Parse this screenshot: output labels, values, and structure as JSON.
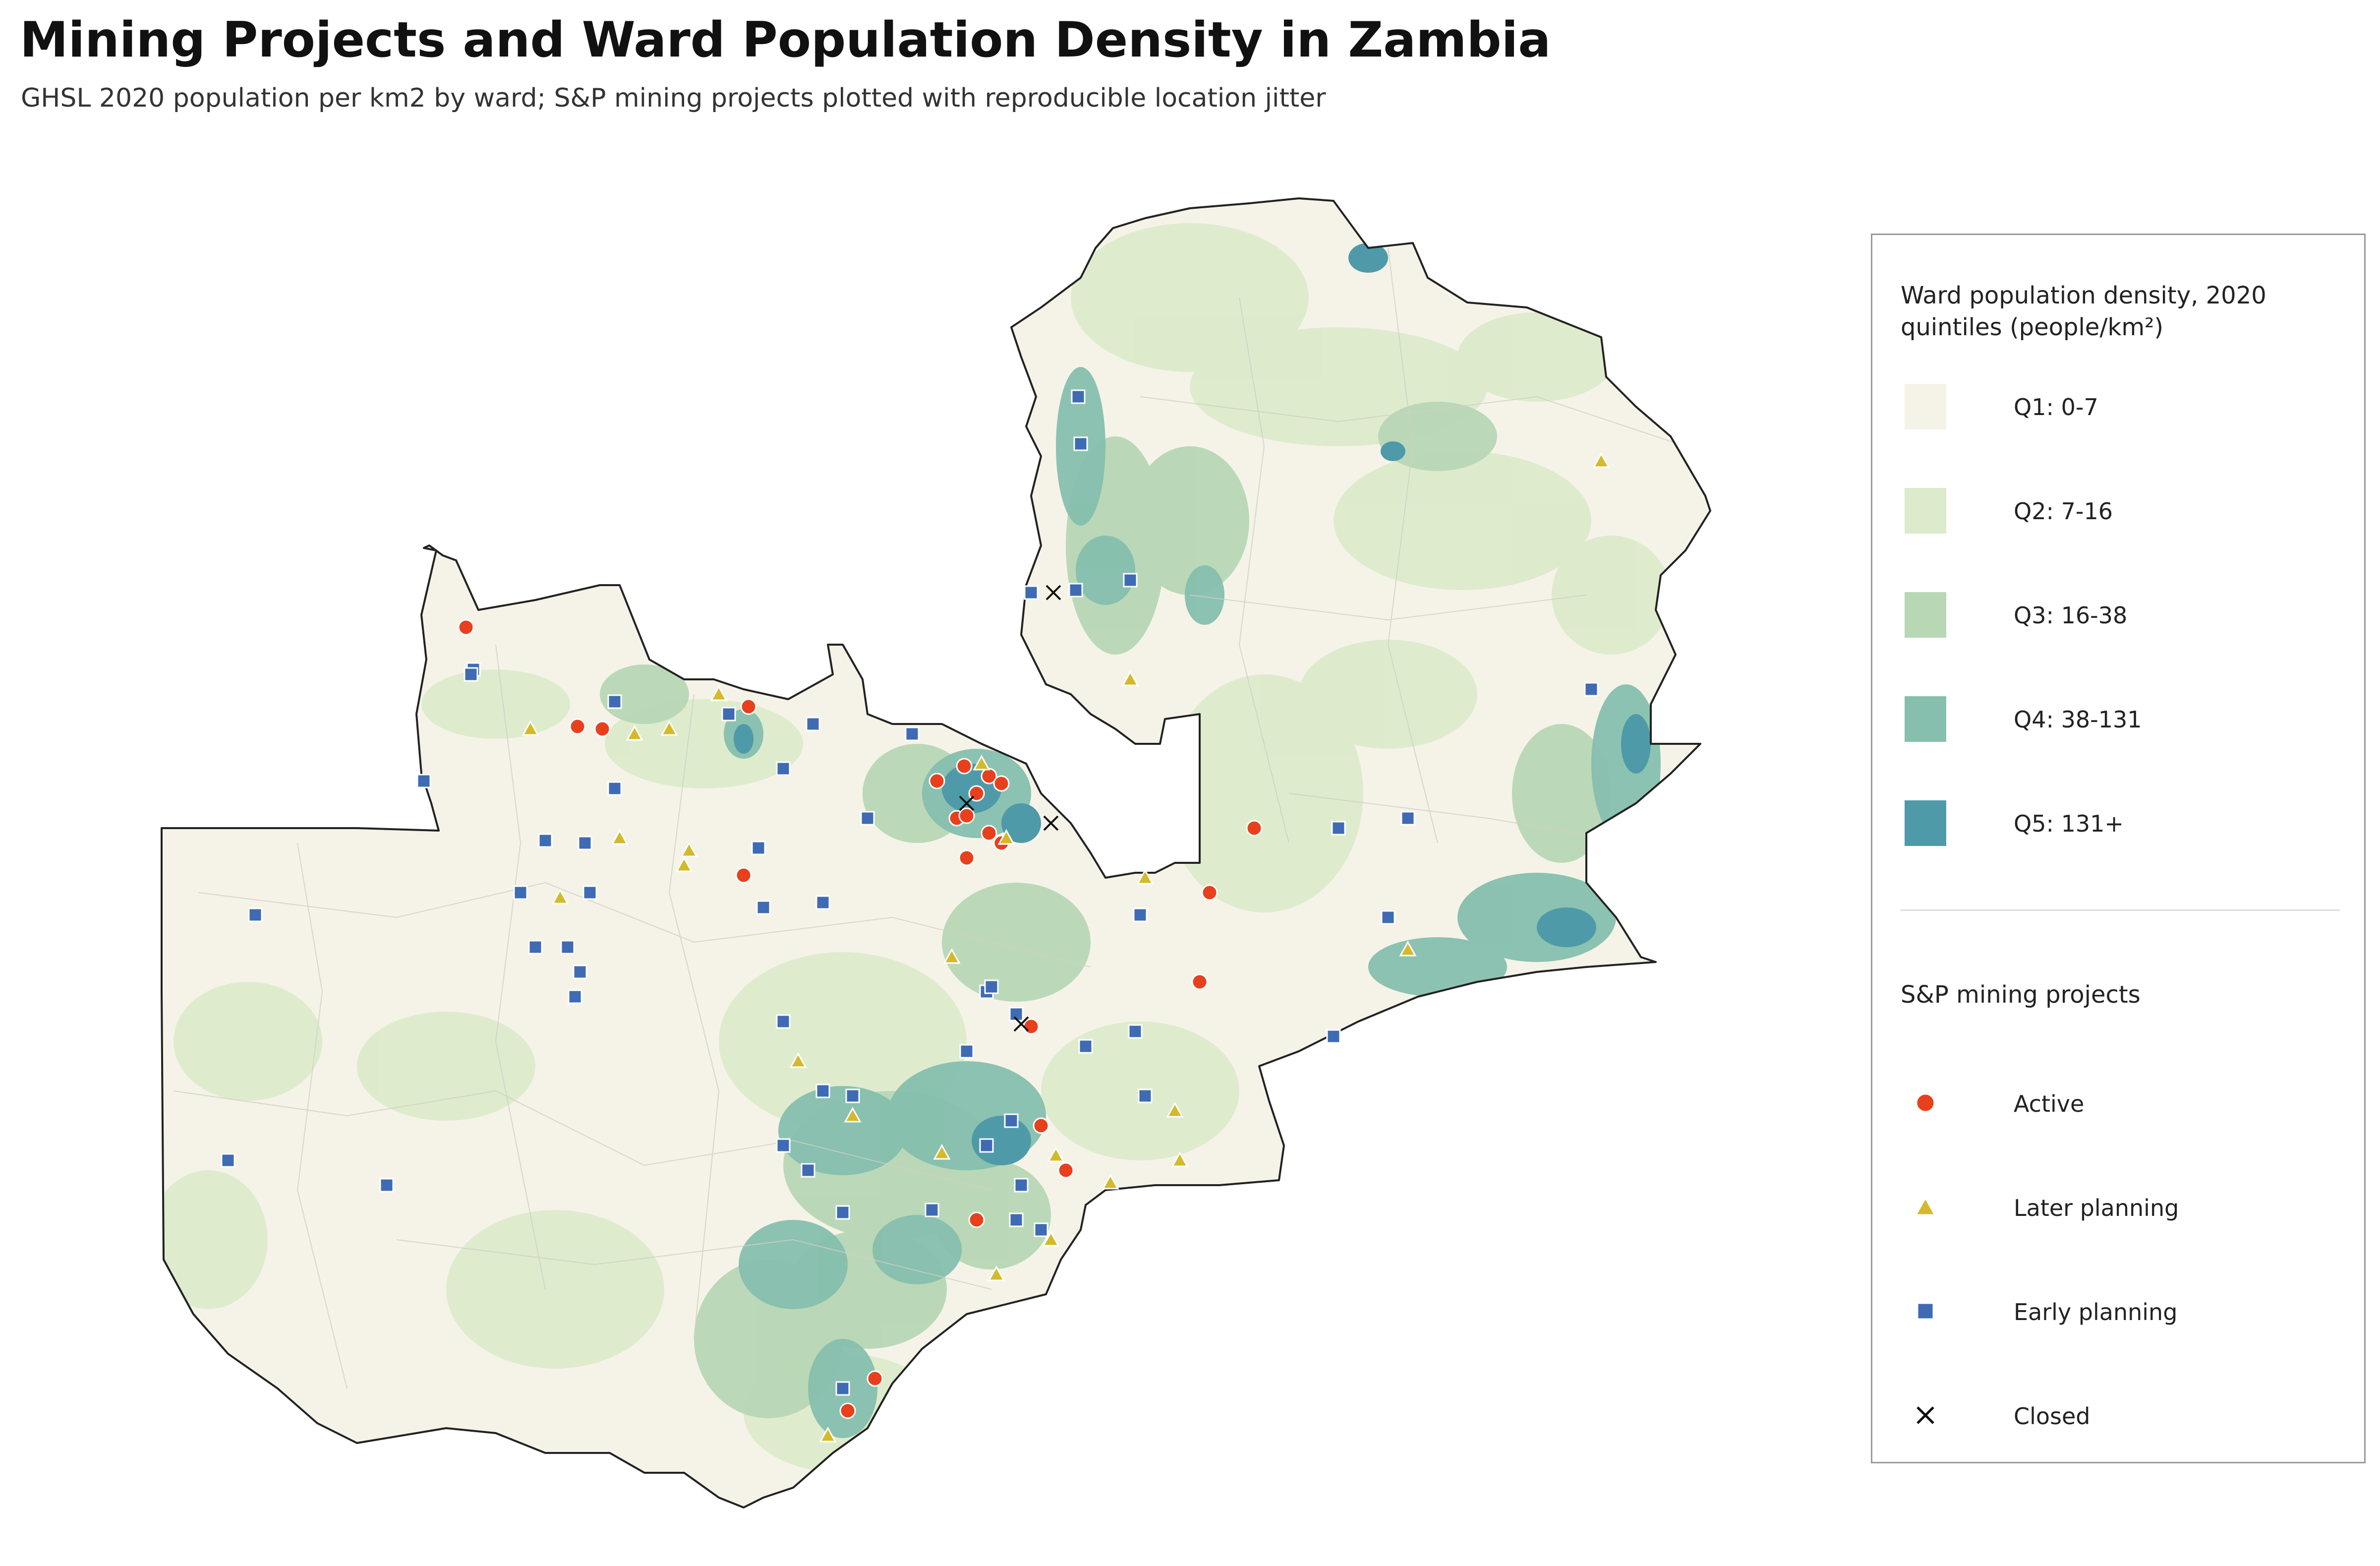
{
  "title": "Mining Projects and Ward Population Density in Zambia",
  "subtitle": "GHSL 2020 population per km2 by ward; S&P mining projects plotted with reproducible location jitter",
  "legend": {
    "density_title_line1": "Ward population density, 2020",
    "density_title_line2": "quintiles (people/km²)",
    "quintiles": [
      {
        "label": "Q1: 0-7",
        "color": "#f5f3e8"
      },
      {
        "label": "Q2: 7-16",
        "color": "#dcebcb"
      },
      {
        "label": "Q3: 16-38",
        "color": "#b7d7b5"
      },
      {
        "label": "Q4: 38-131",
        "color": "#86bfae"
      },
      {
        "label": "Q5: 131+",
        "color": "#4f9aa8"
      }
    ],
    "projects_title": "S&P mining projects",
    "projects": [
      {
        "label": "Active",
        "marker": "circle",
        "color": "#e8401c"
      },
      {
        "label": "Later planning",
        "marker": "triangle",
        "color": "#d4b92a"
      },
      {
        "label": "Early planning",
        "marker": "square",
        "color": "#3e6bb3"
      },
      {
        "label": "Closed",
        "marker": "x-mark",
        "color": "#111111"
      }
    ]
  }
}
